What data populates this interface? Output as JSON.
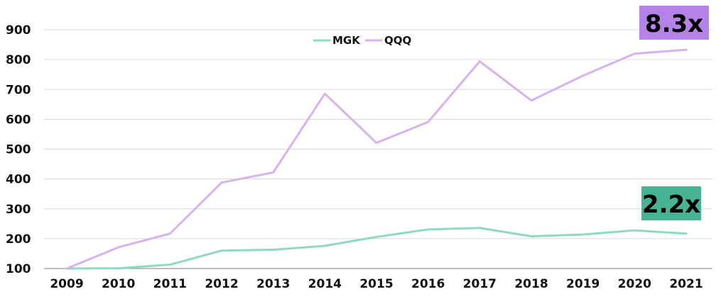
{
  "chart_data": {
    "type": "line",
    "x": [
      "2009",
      "2010",
      "2011",
      "2012",
      "2013",
      "2014",
      "2015",
      "2016",
      "2017",
      "2018",
      "2019",
      "2020",
      "2021"
    ],
    "series": [
      {
        "name": "MGK",
        "color": "#8fd9c3",
        "values": [
          100,
          101,
          113,
          160,
          163,
          176,
          206,
          231,
          236,
          208,
          214,
          228,
          217
        ]
      },
      {
        "name": "QQQ",
        "color": "#d6b3ee",
        "values": [
          100,
          171,
          217,
          388,
          422,
          686,
          521,
          591,
          794,
          663,
          746,
          820,
          833
        ]
      }
    ],
    "yticks": [
      "100",
      "200",
      "300",
      "400",
      "500",
      "600",
      "700",
      "800",
      "900"
    ],
    "ylim": [
      100,
      900
    ],
    "grid": true,
    "legend_position": "top-center",
    "annotations": [
      {
        "text": "8.3x",
        "series": "QQQ",
        "background": "#b482e8"
      },
      {
        "text": "2.2x",
        "series": "MGK",
        "background": "#47b294"
      }
    ],
    "title": "",
    "xlabel": "",
    "ylabel": ""
  }
}
